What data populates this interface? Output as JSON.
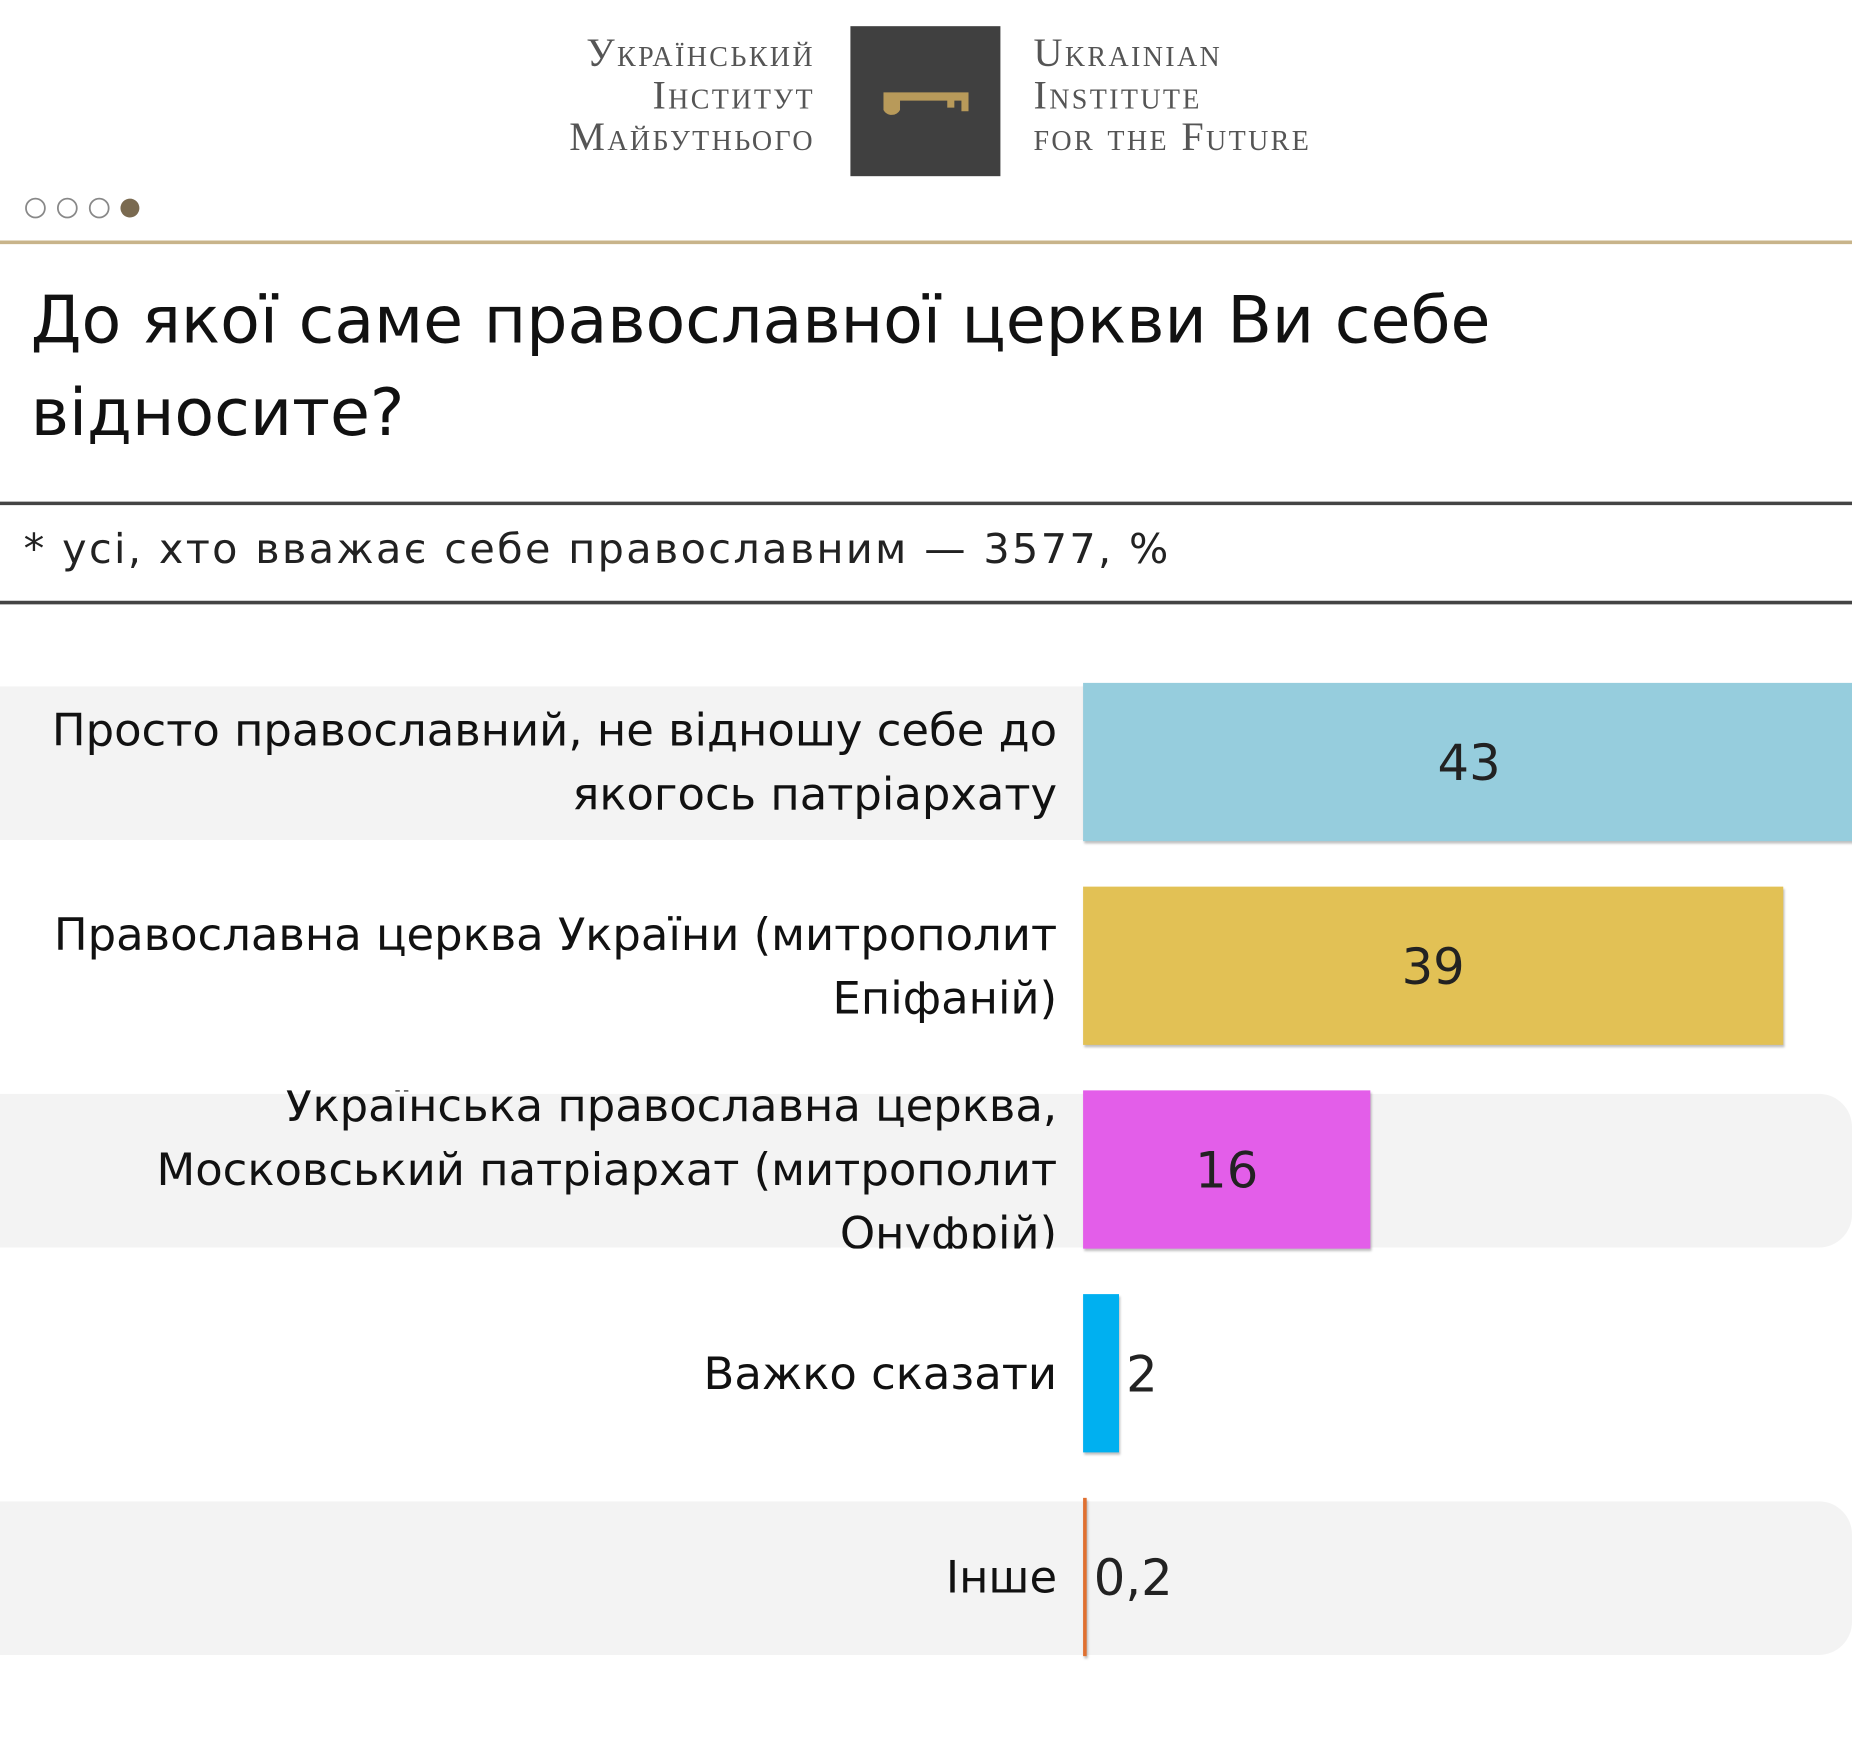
{
  "header": {
    "logo_left": [
      "Український",
      "Інститут",
      "Майбутнього"
    ],
    "logo_right": [
      "Ukrainian",
      "Institute",
      "for the Future"
    ]
  },
  "chart_data": {
    "type": "bar",
    "orientation": "horizontal",
    "title": "До якої саме православної церкви Ви себе відносите?",
    "subtitle": "* усі, хто вважає себе православним — 3577, %",
    "categories": [
      "Просто православний, не відношу себе до якогось патріархату",
      "Православна церква України (митрополит Епіфаній)",
      "Українська православна церква, Московський патріархат (митрополит Онуфрій)",
      "Важко сказати",
      "Інше"
    ],
    "values": [
      43,
      39,
      16,
      2,
      0.2
    ],
    "value_labels": [
      "43",
      "39",
      "16",
      "2",
      "0,2"
    ],
    "colors": [
      "#96cddd",
      "#e2c155",
      "#e35ee9",
      "#00b0f0",
      "#e07030"
    ]
  }
}
